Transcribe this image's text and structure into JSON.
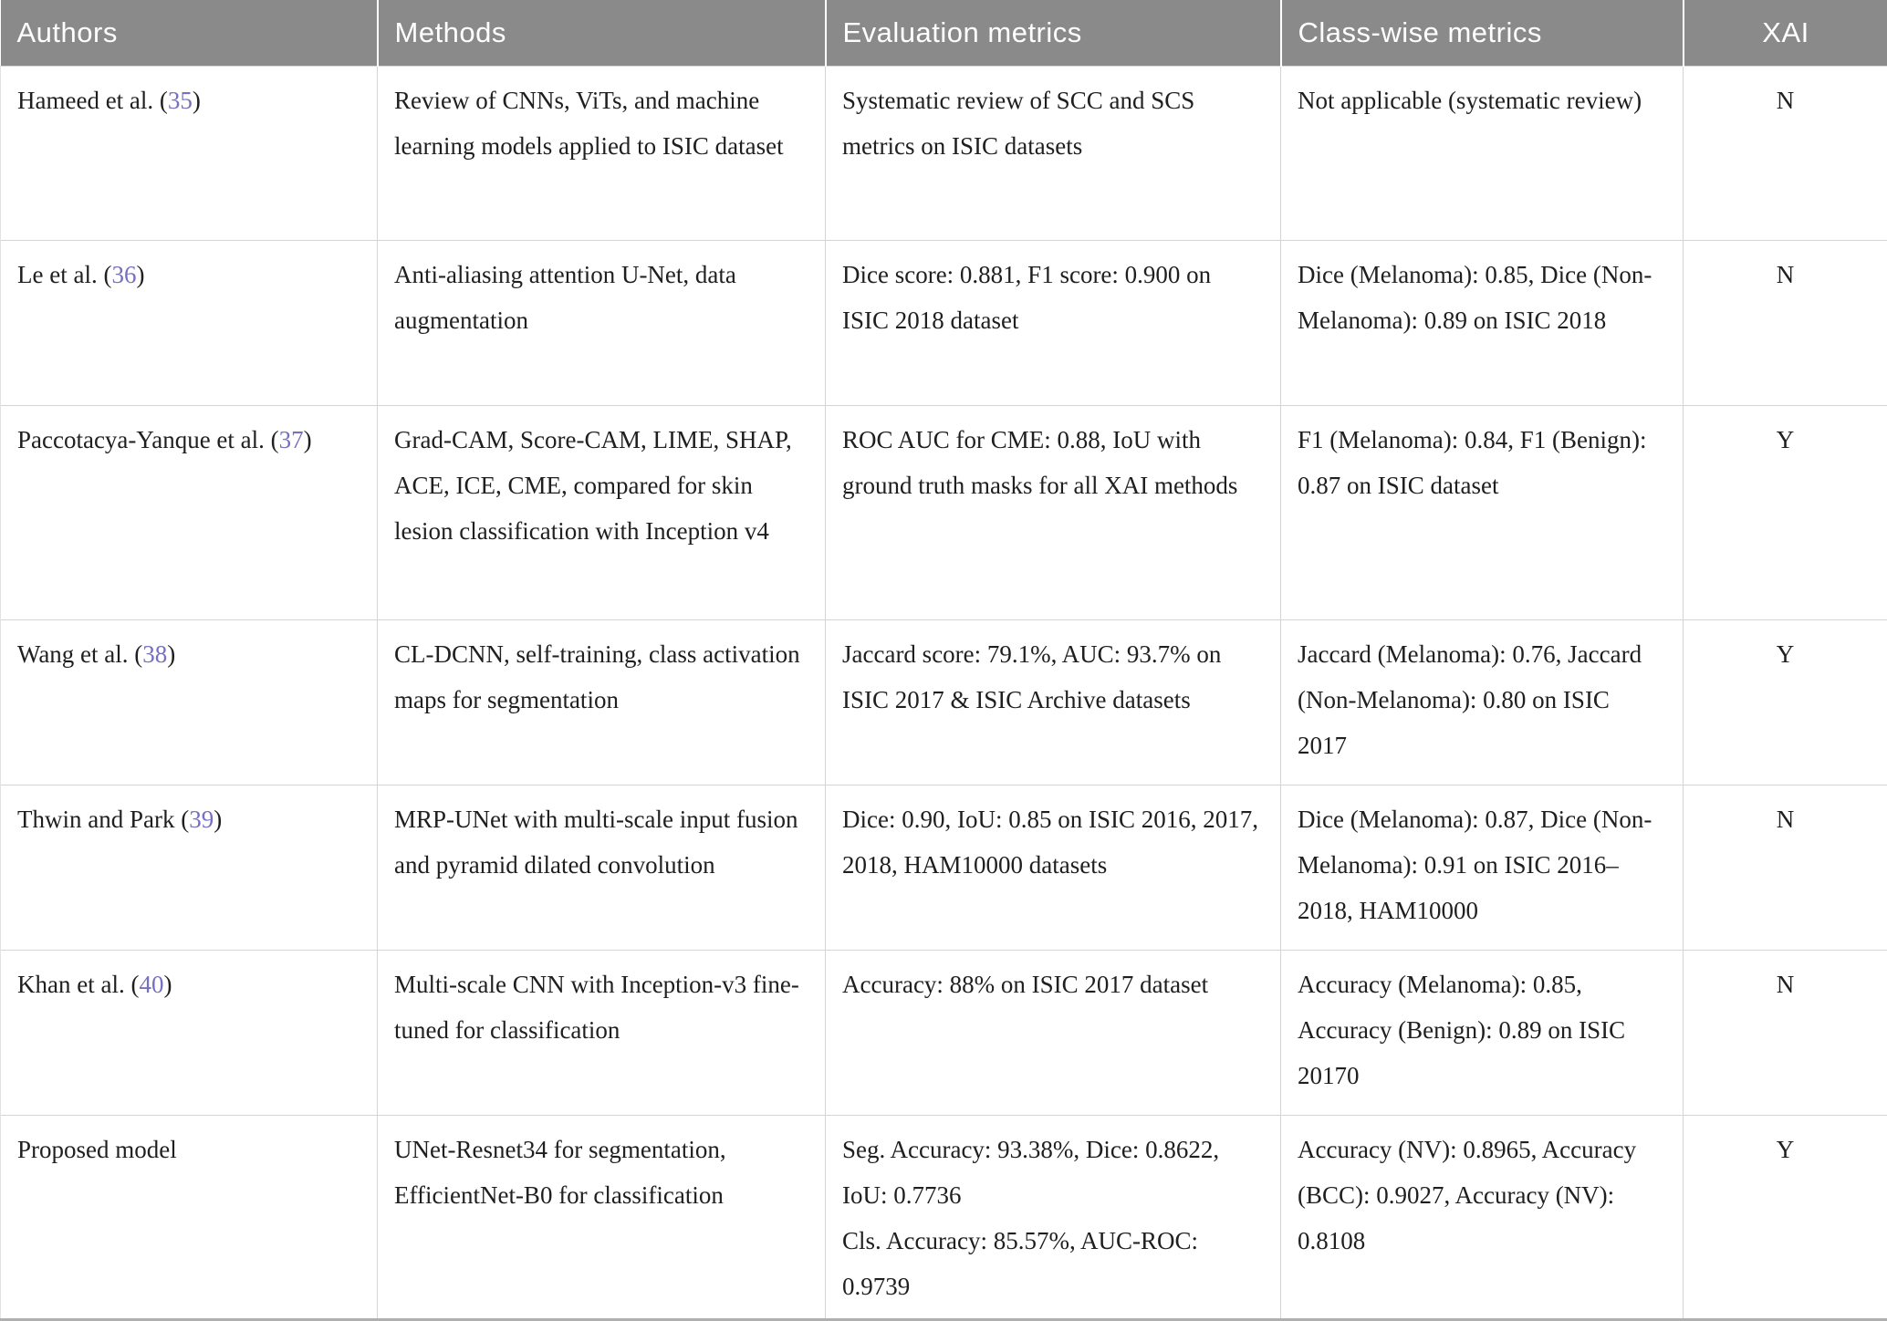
{
  "colors": {
    "header_bg": "#8a8a8a",
    "header_fg": "#ffffff",
    "reference_link": "#7570c0"
  },
  "table": {
    "columns": [
      "Authors",
      "Methods",
      "Evaluation metrics",
      "Class-wise metrics",
      "XAI"
    ],
    "rows": [
      {
        "author_prefix": "Hameed et al. (",
        "ref": "35",
        "author_suffix": ")",
        "methods": "Review of CNNs, ViTs, and machine learning models applied to ISIC dataset",
        "evaluation": [
          "Systematic review of SCC and SCS metrics on ISIC datasets"
        ],
        "classwise": "Not applicable (systematic review)",
        "xai": "N"
      },
      {
        "author_prefix": "Le et al. (",
        "ref": "36",
        "author_suffix": ")",
        "methods": "Anti-aliasing attention U-Net, data augmentation",
        "evaluation": [
          "Dice score: 0.881, F1 score: 0.900 on ISIC 2018 dataset"
        ],
        "classwise": "Dice (Melanoma): 0.85, Dice (Non-Melanoma): 0.89 on ISIC 2018",
        "xai": "N"
      },
      {
        "author_prefix": "Paccotacya-Yanque et al. (",
        "ref": "37",
        "author_suffix": ")",
        "methods": "Grad-CAM, Score-CAM, LIME, SHAP, ACE, ICE, CME, compared for skin lesion classification with Inception v4",
        "evaluation": [
          "ROC AUC for CME: 0.88, IoU with ground truth masks for all XAI methods"
        ],
        "classwise": "F1 (Melanoma): 0.84, F1 (Benign): 0.87 on ISIC dataset",
        "xai": "Y"
      },
      {
        "author_prefix": "Wang et al. (",
        "ref": "38",
        "author_suffix": ")",
        "methods": "CL-DCNN, self-training, class activation maps for segmentation",
        "evaluation": [
          "Jaccard score: 79.1%, AUC: 93.7% on ISIC 2017 & ISIC Archive datasets"
        ],
        "classwise": "Jaccard (Melanoma): 0.76, Jaccard (Non-Melanoma): 0.80 on ISIC 2017",
        "xai": "Y"
      },
      {
        "author_prefix": "Thwin and Park (",
        "ref": "39",
        "author_suffix": ")",
        "methods": "MRP-UNet with multi-scale input fusion and pyramid dilated convolution",
        "evaluation": [
          "Dice: 0.90, IoU: 0.85 on ISIC 2016, 2017, 2018, HAM10000 datasets"
        ],
        "classwise": "Dice (Melanoma): 0.87, Dice (Non-Melanoma): 0.91 on ISIC 2016–2018, HAM10000",
        "xai": "N"
      },
      {
        "author_prefix": "Khan et al. (",
        "ref": "40",
        "author_suffix": ")",
        "methods": "Multi-scale CNN with Inception-v3 fine-tuned for classification",
        "evaluation": [
          "Accuracy: 88% on ISIC 2017 dataset"
        ],
        "classwise": "Accuracy (Melanoma): 0.85, Accuracy (Benign): 0.89 on ISIC 20170",
        "xai": "N"
      },
      {
        "author_prefix": "Proposed model",
        "ref": "",
        "author_suffix": "",
        "methods": "UNet-Resnet34 for segmentation, EfficientNet-B0 for classification",
        "evaluation": [
          "Seg. Accuracy: 93.38%, Dice: 0.8622, IoU: 0.7736",
          "Cls. Accuracy: 85.57%, AUC-ROC: 0.9739"
        ],
        "classwise": "Accuracy (NV): 0.8965, Accuracy (BCC): 0.9027, Accuracy (NV): 0.8108",
        "xai": "Y"
      }
    ]
  }
}
